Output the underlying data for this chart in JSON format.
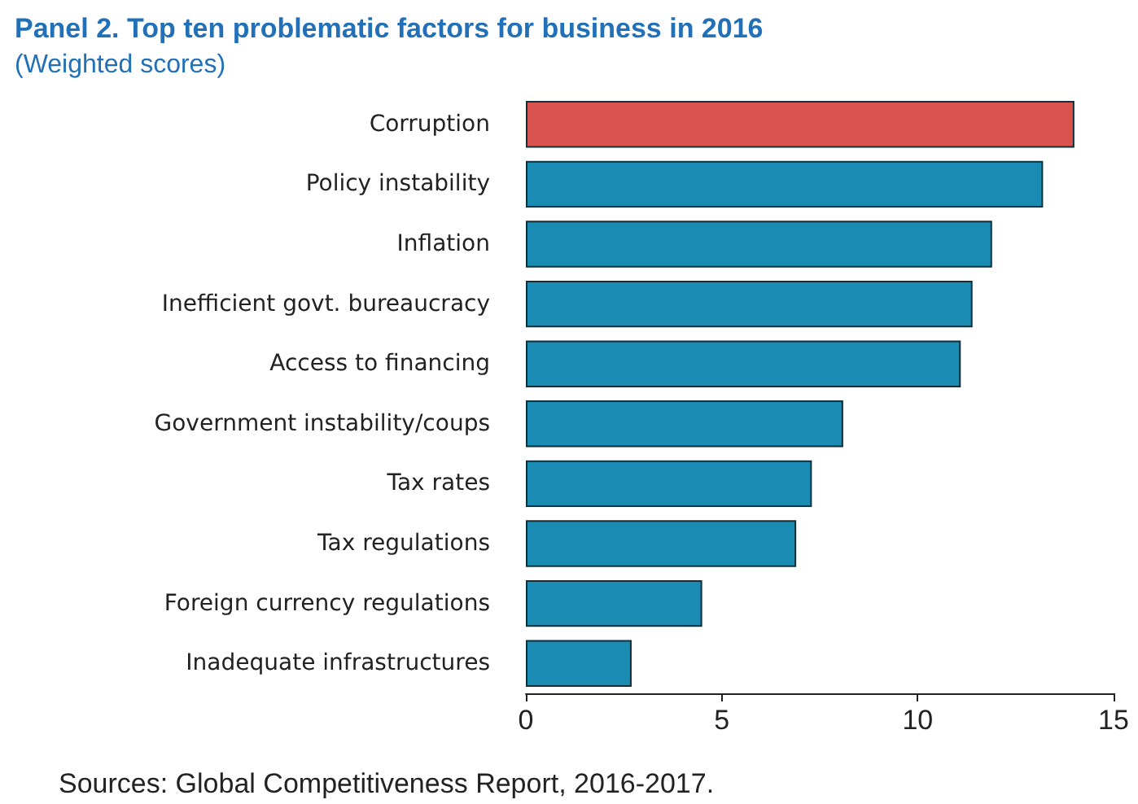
{
  "chart_data": {
    "type": "bar",
    "orientation": "horizontal",
    "title": "Panel 2. Top ten problematic factors for business in 2016",
    "subtitle": "(Weighted scores)",
    "categories": [
      "Corruption",
      "Policy instability",
      "Inflation",
      "Inefficient govt. bureaucracy",
      "Access to financing",
      "Government instability/coups",
      "Tax rates",
      "Tax regulations",
      "Foreign currency regulations",
      "Inadequate infrastructures"
    ],
    "values": [
      14.0,
      13.2,
      11.9,
      11.4,
      11.1,
      8.1,
      7.3,
      6.9,
      4.5,
      2.7
    ],
    "colors": [
      "#d9534f",
      "#1a8bb3",
      "#1a8bb3",
      "#1a8bb3",
      "#1a8bb3",
      "#1a8bb3",
      "#1a8bb3",
      "#1a8bb3",
      "#1a8bb3",
      "#1a8bb3"
    ],
    "xlim": [
      0,
      15
    ],
    "xticks": [
      0,
      5,
      10,
      15
    ],
    "grid": false,
    "annotations": [
      "Sources: Global Competitiveness Report, 2016-2017."
    ]
  }
}
